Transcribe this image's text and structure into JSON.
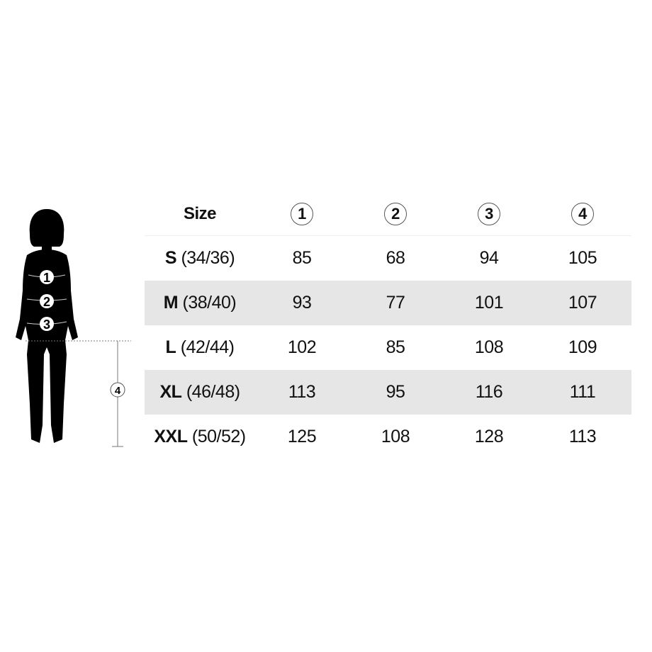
{
  "header": {
    "size_label": "Size",
    "columns": [
      "1",
      "2",
      "3",
      "4"
    ]
  },
  "rows": [
    {
      "size": "S",
      "eu": "(34/36)",
      "values": [
        "85",
        "68",
        "94",
        "105"
      ]
    },
    {
      "size": "M",
      "eu": "(38/40)",
      "values": [
        "93",
        "77",
        "101",
        "107"
      ]
    },
    {
      "size": "L",
      "eu": "(42/44)",
      "values": [
        "102",
        "85",
        "108",
        "109"
      ]
    },
    {
      "size": "XL",
      "eu": "(46/48)",
      "values": [
        "113",
        "95",
        "116",
        "111"
      ]
    },
    {
      "size": "XXL",
      "eu": "(50/52)",
      "values": [
        "125",
        "108",
        "128",
        "113"
      ]
    }
  ],
  "figure": {
    "markers": [
      "1",
      "2",
      "3"
    ],
    "length_marker": "4"
  },
  "colors": {
    "row_shade": "#e6e6e6",
    "text": "#111111"
  }
}
